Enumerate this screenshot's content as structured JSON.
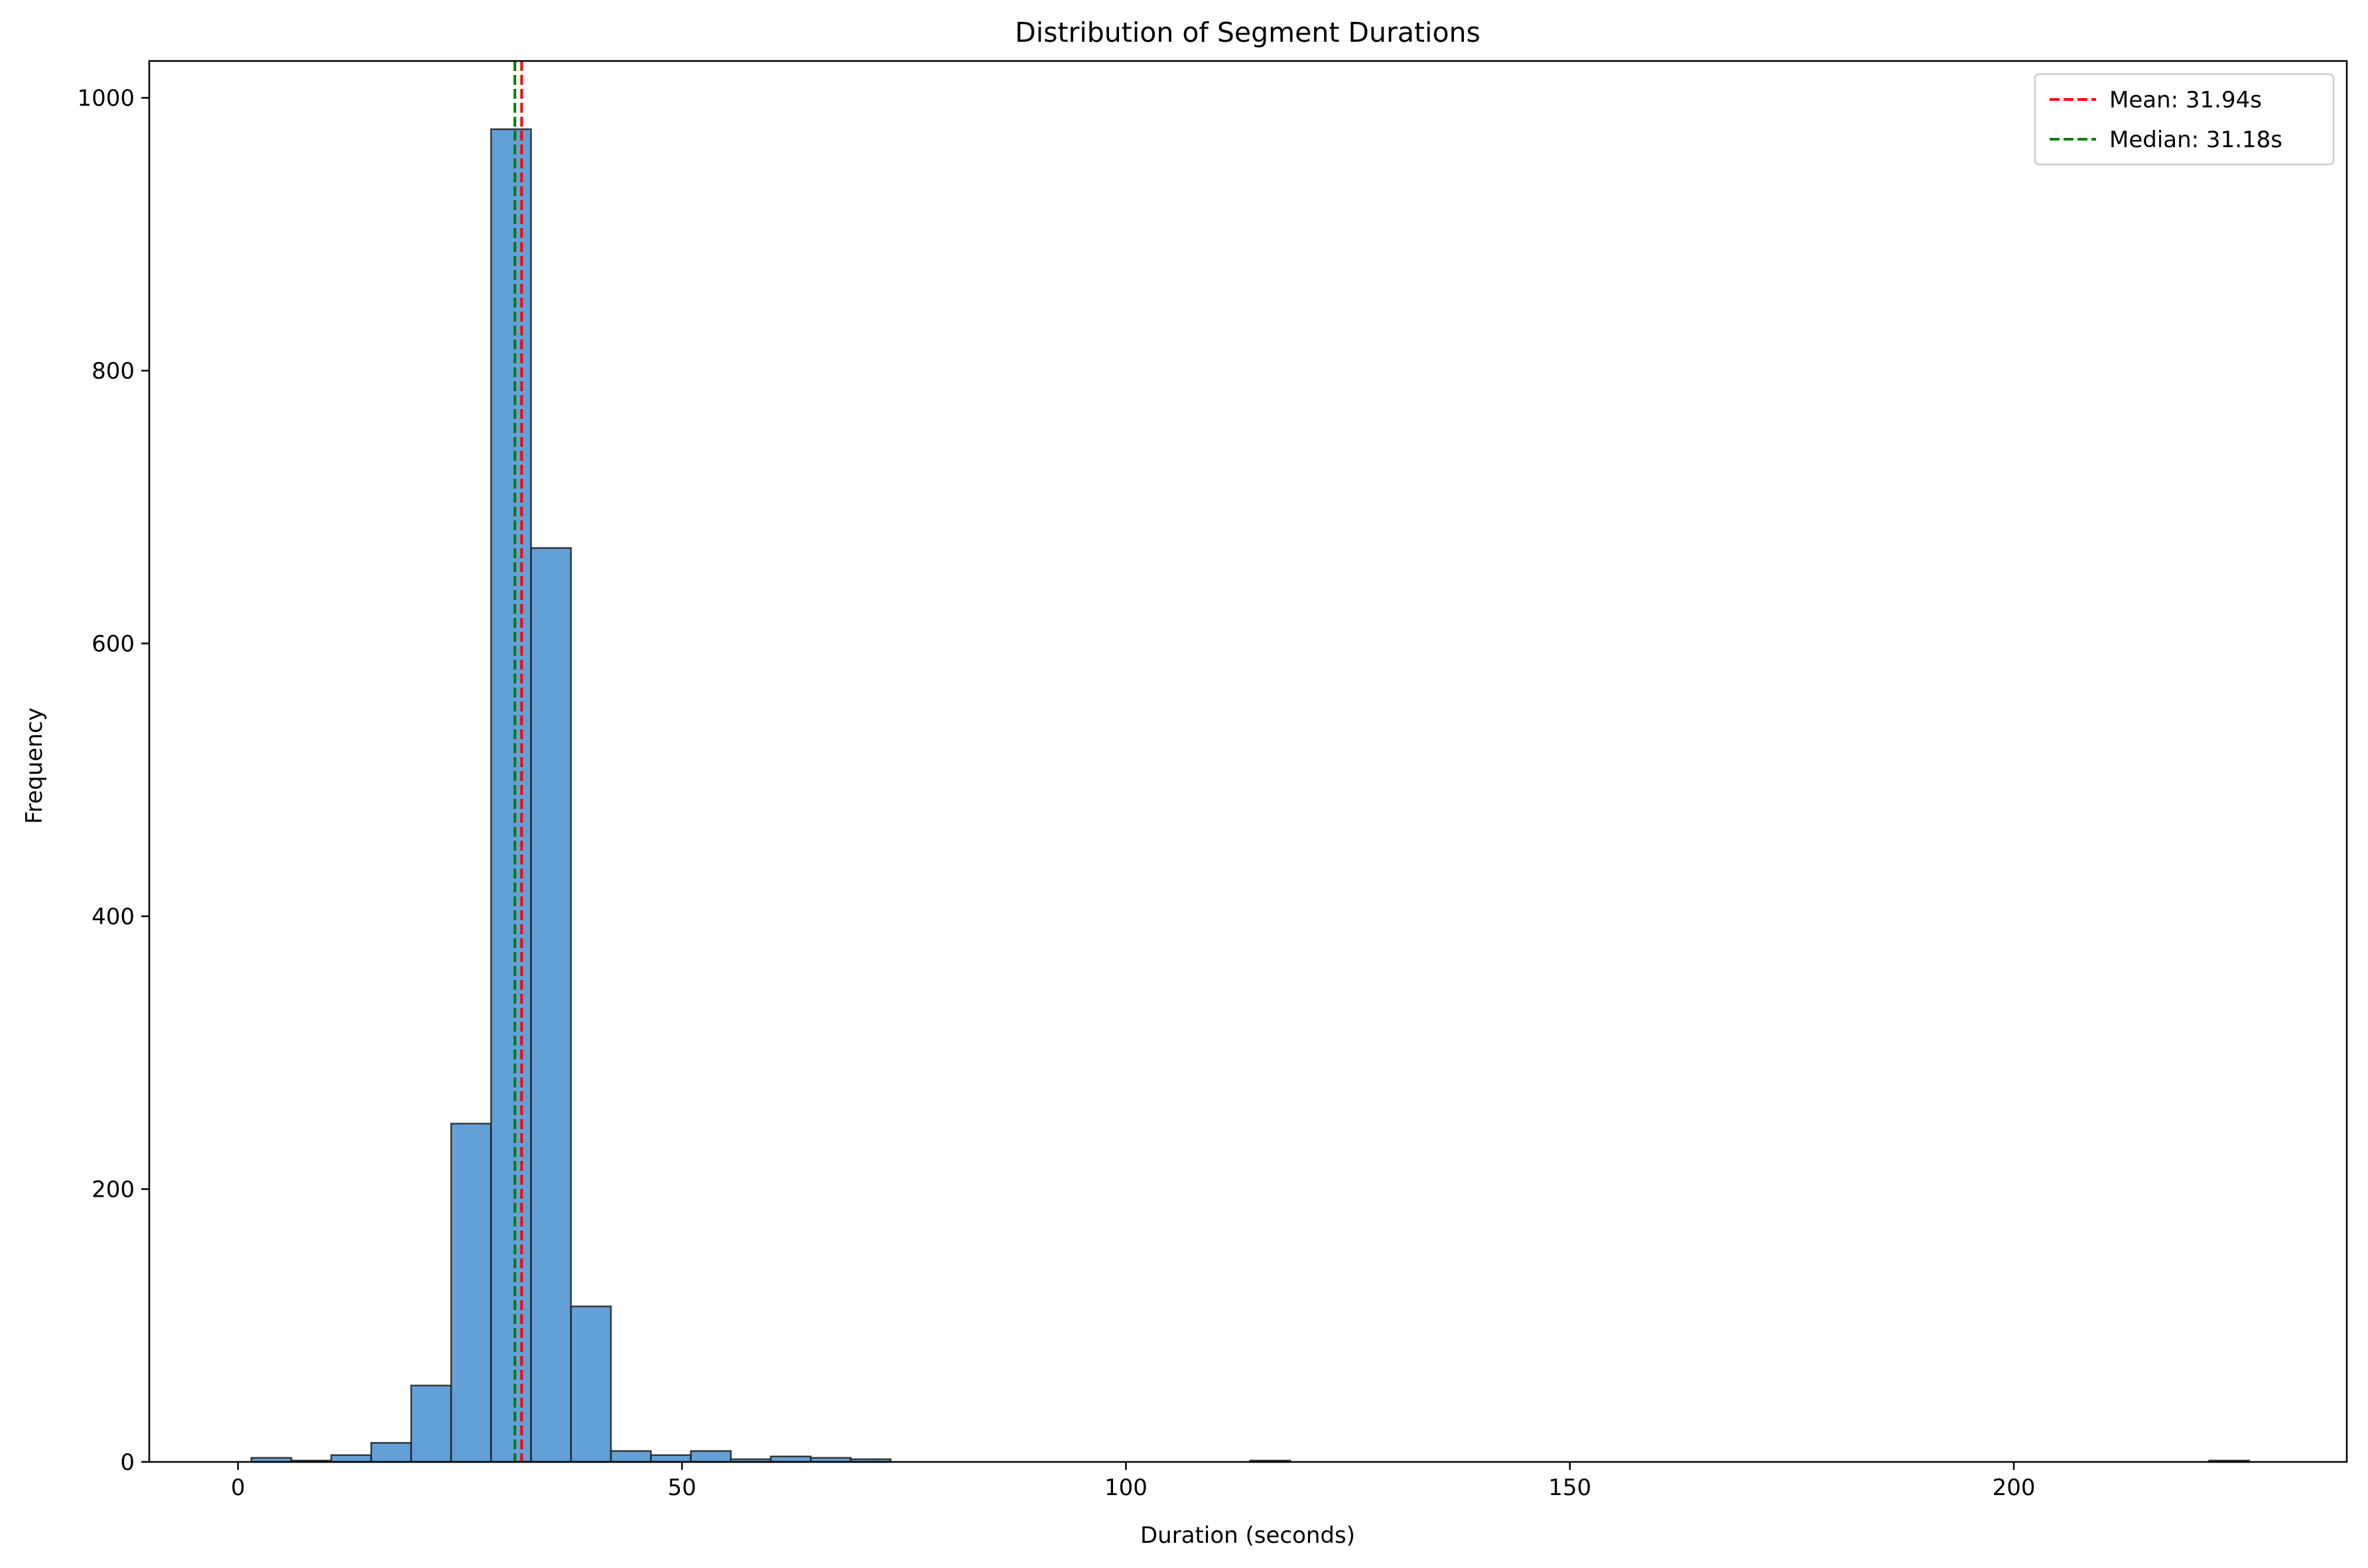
{
  "chart_data": {
    "type": "bar",
    "title": "Distribution of Segment Durations",
    "xlabel": "Duration (seconds)",
    "ylabel": "Frequency",
    "xlim": [
      -10,
      237.5
    ],
    "ylim": [
      0,
      1027
    ],
    "xticks": [
      0,
      50,
      100,
      150,
      200
    ],
    "yticks": [
      0,
      200,
      400,
      600,
      800,
      1000
    ],
    "grid": false,
    "legend_position": "top-right",
    "bins": {
      "start": 1.5,
      "width": 4.5,
      "counts": [
        3,
        1,
        5,
        14,
        56,
        248,
        977,
        670,
        114,
        8,
        5,
        8,
        2,
        4,
        3,
        2,
        0,
        0,
        0,
        0,
        0,
        0,
        0,
        0,
        0,
        1,
        0,
        0,
        0,
        0,
        0,
        0,
        0,
        0,
        0,
        0,
        0,
        0,
        0,
        0,
        0,
        0,
        0,
        0,
        0,
        0,
        0,
        0,
        0,
        1
      ]
    },
    "bar_color": "#5b9bd5",
    "bar_edge_color": "#1f1f1f",
    "lines": [
      {
        "label": "Mean: 31.94s",
        "x": 31.94,
        "color": "#ff0000",
        "style": "dashed"
      },
      {
        "label": "Median: 31.18s",
        "x": 31.18,
        "color": "#008000",
        "style": "dashed"
      }
    ]
  }
}
